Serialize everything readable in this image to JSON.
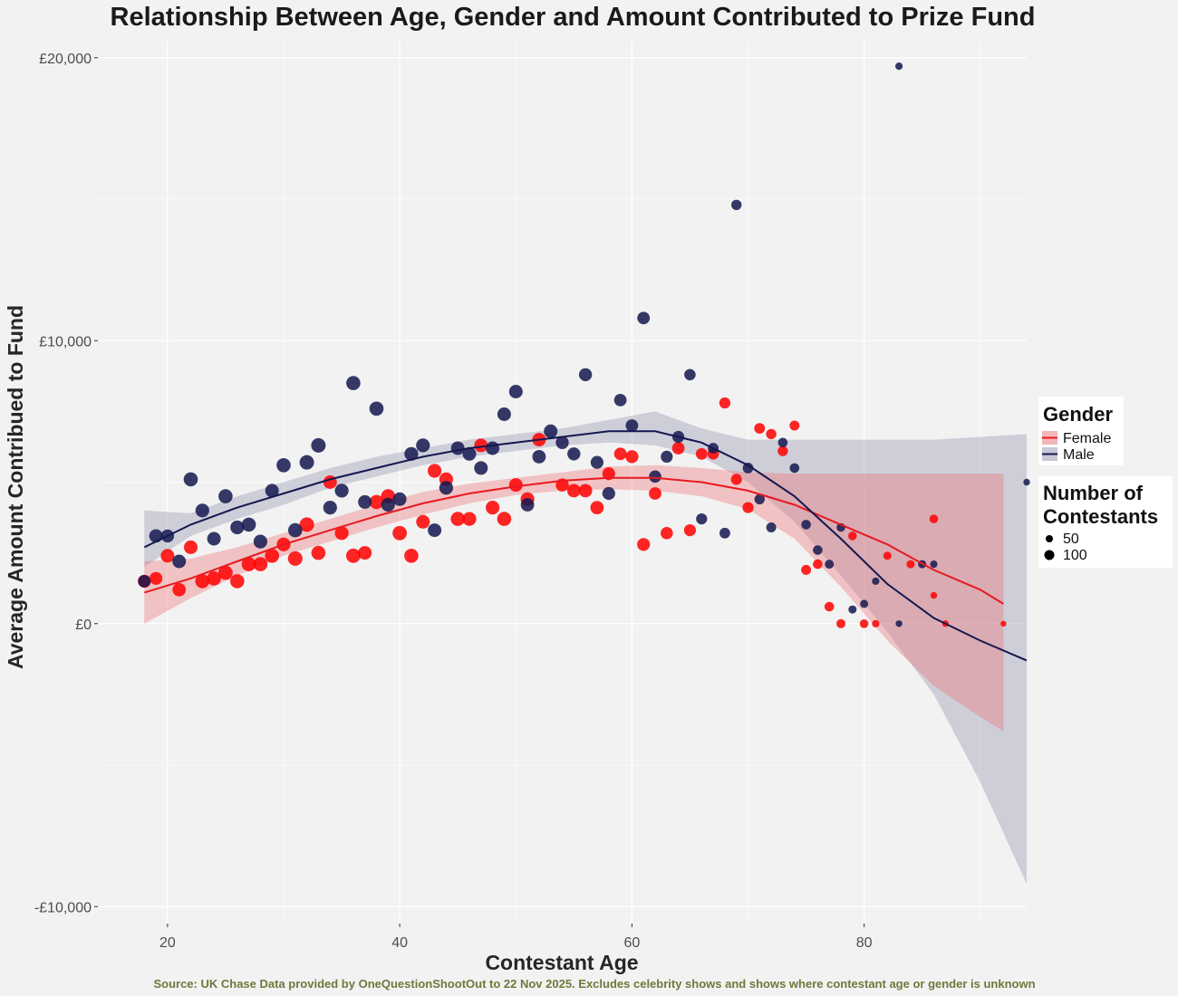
{
  "chart_data": {
    "type": "scatter",
    "title": "Relationship Between Age, Gender and Amount Contributed to Prize Fund",
    "xlabel": "Contestant Age",
    "ylabel": "Average Amount Contribued to Fund",
    "caption": "Source: UK Chase Data provided by OneQuestionShootOut to 22 Nov 2025. Excludes celebrity shows and shows where contestant age or gender is unknown",
    "xlim": [
      14,
      94
    ],
    "ylim": [
      -10600,
      20600
    ],
    "x_ticks": [
      20,
      40,
      60,
      80
    ],
    "x_tick_labels": [
      "20",
      "40",
      "60",
      "80"
    ],
    "y_ticks": [
      -10000,
      0,
      10000,
      20000
    ],
    "y_tick_labels": [
      "-£10,000",
      "£0",
      "£10,000",
      "£20,000"
    ],
    "grid": true,
    "legend_gender": {
      "title": "Gender",
      "entries": [
        {
          "label": "Female",
          "color": "#e8191f",
          "band": "#f4b6b8"
        },
        {
          "label": "Male",
          "color": "#14184f",
          "band": "#c8c8d6"
        }
      ]
    },
    "legend_size": {
      "title_line1": "Number of",
      "title_line2": "Contestants",
      "entries": [
        {
          "label": "50",
          "n": 50
        },
        {
          "label": "100",
          "n": 100
        }
      ]
    },
    "series": [
      {
        "name": "Female",
        "color": "#ff0000",
        "points": [
          [
            18,
            1500,
            90
          ],
          [
            19,
            1600,
            85
          ],
          [
            20,
            2400,
            100
          ],
          [
            21,
            1200,
            95
          ],
          [
            22,
            2700,
            100
          ],
          [
            23,
            1500,
            110
          ],
          [
            24,
            1600,
            110
          ],
          [
            25,
            1800,
            115
          ],
          [
            26,
            1500,
            110
          ],
          [
            27,
            2100,
            115
          ],
          [
            28,
            2100,
            110
          ],
          [
            29,
            2400,
            110
          ],
          [
            30,
            2800,
            105
          ],
          [
            31,
            2300,
            120
          ],
          [
            32,
            3500,
            120
          ],
          [
            33,
            2500,
            110
          ],
          [
            34,
            5000,
            100
          ],
          [
            35,
            3200,
            105
          ],
          [
            36,
            2400,
            115
          ],
          [
            37,
            2500,
            100
          ],
          [
            38,
            4300,
            110
          ],
          [
            39,
            4500,
            110
          ],
          [
            40,
            3200,
            115
          ],
          [
            41,
            2400,
            110
          ],
          [
            42,
            3600,
            100
          ],
          [
            43,
            5400,
            105
          ],
          [
            44,
            5100,
            105
          ],
          [
            45,
            3700,
            110
          ],
          [
            46,
            3700,
            105
          ],
          [
            47,
            6300,
            100
          ],
          [
            48,
            4100,
            105
          ],
          [
            49,
            3700,
            110
          ],
          [
            50,
            4900,
            100
          ],
          [
            51,
            4400,
            105
          ],
          [
            52,
            6500,
            100
          ],
          [
            54,
            4900,
            90
          ],
          [
            55,
            4700,
            95
          ],
          [
            56,
            4700,
            95
          ],
          [
            57,
            4100,
            95
          ],
          [
            58,
            5300,
            85
          ],
          [
            59,
            6000,
            80
          ],
          [
            60,
            5900,
            85
          ],
          [
            61,
            2800,
            85
          ],
          [
            62,
            4600,
            80
          ],
          [
            63,
            3200,
            75
          ],
          [
            64,
            6200,
            80
          ],
          [
            65,
            3300,
            70
          ],
          [
            66,
            6000,
            65
          ],
          [
            67,
            6000,
            60
          ],
          [
            68,
            7800,
            55
          ],
          [
            69,
            5100,
            55
          ],
          [
            70,
            4100,
            55
          ],
          [
            71,
            6900,
            50
          ],
          [
            72,
            6700,
            45
          ],
          [
            73,
            6100,
            45
          ],
          [
            74,
            7000,
            40
          ],
          [
            75,
            1900,
            40
          ],
          [
            76,
            2100,
            35
          ],
          [
            77,
            600,
            35
          ],
          [
            78,
            0,
            30
          ],
          [
            79,
            3100,
            25
          ],
          [
            80,
            0,
            25
          ],
          [
            81,
            0,
            15
          ],
          [
            82,
            2400,
            20
          ],
          [
            84,
            2100,
            20
          ],
          [
            86,
            1000,
            10
          ],
          [
            86,
            3700,
            25
          ],
          [
            87,
            0,
            10
          ],
          [
            92,
            0,
            5
          ]
        ],
        "fit_x": [
          18,
          22,
          26,
          30,
          34,
          38,
          42,
          46,
          50,
          54,
          58,
          62,
          66,
          70,
          74,
          78,
          82,
          86,
          90,
          92
        ],
        "fit_y": [
          1100,
          1600,
          2200,
          2800,
          3300,
          3800,
          4250,
          4600,
          4850,
          5050,
          5150,
          5150,
          5000,
          4700,
          4200,
          3500,
          2800,
          1900,
          1200,
          700
        ],
        "band_low": [
          0,
          900,
          1700,
          2400,
          2900,
          3400,
          3850,
          4250,
          4550,
          4700,
          4750,
          4700,
          4500,
          4050,
          3000,
          1300,
          -600,
          -2200,
          -3300,
          -3800
        ],
        "band_high": [
          2200,
          2300,
          2700,
          3200,
          3700,
          4200,
          4650,
          4950,
          5150,
          5350,
          5550,
          5600,
          5500,
          5350,
          5300,
          5300,
          5300,
          5300,
          5300,
          5300
        ]
      },
      {
        "name": "Male",
        "color": "#14184f",
        "points": [
          [
            18,
            1500,
            80
          ],
          [
            19,
            3100,
            95
          ],
          [
            20,
            3100,
            90
          ],
          [
            21,
            2200,
            100
          ],
          [
            22,
            5100,
            110
          ],
          [
            23,
            4000,
            105
          ],
          [
            24,
            3000,
            100
          ],
          [
            25,
            4500,
            110
          ],
          [
            26,
            3400,
            105
          ],
          [
            27,
            3500,
            110
          ],
          [
            28,
            2900,
            105
          ],
          [
            29,
            4700,
            100
          ],
          [
            30,
            5600,
            110
          ],
          [
            31,
            3300,
            110
          ],
          [
            32,
            5700,
            120
          ],
          [
            33,
            6300,
            120
          ],
          [
            34,
            4100,
            105
          ],
          [
            35,
            4700,
            105
          ],
          [
            36,
            8500,
            110
          ],
          [
            37,
            4300,
            100
          ],
          [
            38,
            7600,
            110
          ],
          [
            39,
            4200,
            105
          ],
          [
            40,
            4400,
            100
          ],
          [
            41,
            6000,
            105
          ],
          [
            42,
            6300,
            105
          ],
          [
            43,
            3300,
            100
          ],
          [
            44,
            4800,
            105
          ],
          [
            45,
            6200,
            100
          ],
          [
            46,
            6000,
            100
          ],
          [
            47,
            5500,
            100
          ],
          [
            48,
            6200,
            100
          ],
          [
            49,
            7400,
            100
          ],
          [
            50,
            8200,
            100
          ],
          [
            51,
            4200,
            95
          ],
          [
            52,
            5900,
            95
          ],
          [
            53,
            6800,
            100
          ],
          [
            54,
            6400,
            90
          ],
          [
            55,
            6000,
            90
          ],
          [
            56,
            8800,
            90
          ],
          [
            57,
            5700,
            85
          ],
          [
            58,
            4600,
            85
          ],
          [
            59,
            7900,
            80
          ],
          [
            60,
            7000,
            80
          ],
          [
            61,
            10800,
            80
          ],
          [
            62,
            5200,
            75
          ],
          [
            63,
            5900,
            70
          ],
          [
            64,
            6600,
            70
          ],
          [
            65,
            8800,
            60
          ],
          [
            66,
            3700,
            55
          ],
          [
            67,
            6200,
            50
          ],
          [
            68,
            3200,
            50
          ],
          [
            69,
            14800,
            45
          ],
          [
            70,
            5500,
            50
          ],
          [
            71,
            4400,
            45
          ],
          [
            72,
            3400,
            40
          ],
          [
            73,
            6400,
            35
          ],
          [
            74,
            5500,
            35
          ],
          [
            75,
            3500,
            35
          ],
          [
            76,
            2600,
            35
          ],
          [
            77,
            2100,
            30
          ],
          [
            78,
            3400,
            25
          ],
          [
            79,
            500,
            20
          ],
          [
            80,
            700,
            20
          ],
          [
            81,
            1500,
            15
          ],
          [
            83,
            19700,
            15
          ],
          [
            83,
            0,
            10
          ],
          [
            85,
            2100,
            20
          ],
          [
            86,
            2100,
            15
          ],
          [
            94,
            5000,
            10
          ]
        ],
        "fit_x": [
          18,
          22,
          26,
          30,
          34,
          38,
          42,
          46,
          50,
          54,
          58,
          62,
          66,
          70,
          74,
          78,
          82,
          86,
          90,
          94
        ],
        "fit_y": [
          2700,
          3500,
          4100,
          4600,
          5100,
          5500,
          5900,
          6200,
          6400,
          6600,
          6800,
          6800,
          6400,
          5600,
          4500,
          3000,
          1400,
          200,
          -600,
          -1300
        ],
        "band_low": [
          2000,
          3100,
          3700,
          4200,
          4800,
          5200,
          5600,
          5900,
          6100,
          6300,
          6400,
          6300,
          5900,
          5000,
          3600,
          1700,
          -300,
          -2500,
          -5600,
          -9200
        ],
        "band_high": [
          4000,
          3900,
          4500,
          5000,
          5500,
          5900,
          6200,
          6500,
          6700,
          6900,
          7200,
          7500,
          6900,
          6500,
          6500,
          6500,
          6500,
          6500,
          6600,
          6700
        ]
      }
    ]
  }
}
